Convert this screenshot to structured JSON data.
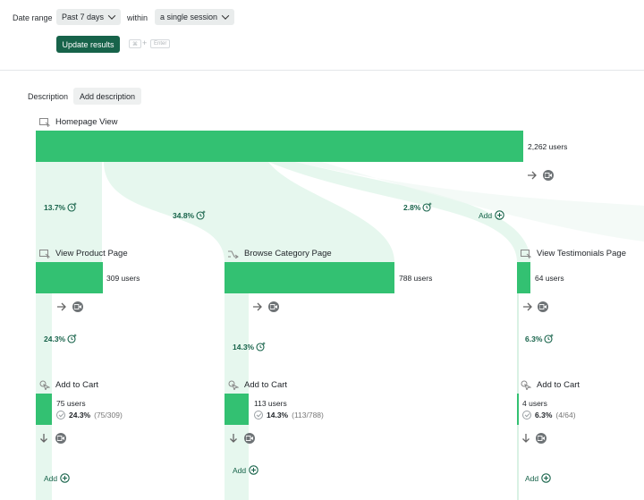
{
  "filters": {
    "date_range_label": "Date range",
    "date_range_value": "Past 7 days",
    "within_label": "within",
    "within_value": "a single session",
    "update_button": "Update results",
    "shortcut_cmd": "⌘",
    "shortcut_plus": "+",
    "shortcut_enter": "Enter"
  },
  "description": {
    "label": "Description",
    "add_button": "Add description"
  },
  "funnel": {
    "root": {
      "name": "Homepage View",
      "users": "2,262 users"
    },
    "root_add": "Add",
    "branch_pcts": [
      "13.7%",
      "34.8%",
      "2.8%"
    ],
    "branches": [
      {
        "name": "View Product Page",
        "users": "309 users",
        "child_pct": "24.3%",
        "child": {
          "name": "Add to Cart",
          "users": "75 users",
          "conv_pct": "24.3%",
          "conv_frac": "(75/309)"
        },
        "add": "Add"
      },
      {
        "name": "Browse Category Page",
        "users": "788 users",
        "child_pct": "14.3%",
        "child": {
          "name": "Add to Cart",
          "users": "113 users",
          "conv_pct": "14.3%",
          "conv_frac": "(113/788)"
        },
        "add": "Add"
      },
      {
        "name": "View Testimonials Page",
        "users": "64 users",
        "child_pct": "6.3%",
        "child": {
          "name": "Add to Cart",
          "users": "4 users",
          "conv_pct": "6.3%",
          "conv_frac": "(4/64)"
        },
        "add": "Add"
      }
    ]
  },
  "colors": {
    "bar": "#33c172",
    "flow": "#e6f7ee",
    "accent": "#17634a"
  }
}
